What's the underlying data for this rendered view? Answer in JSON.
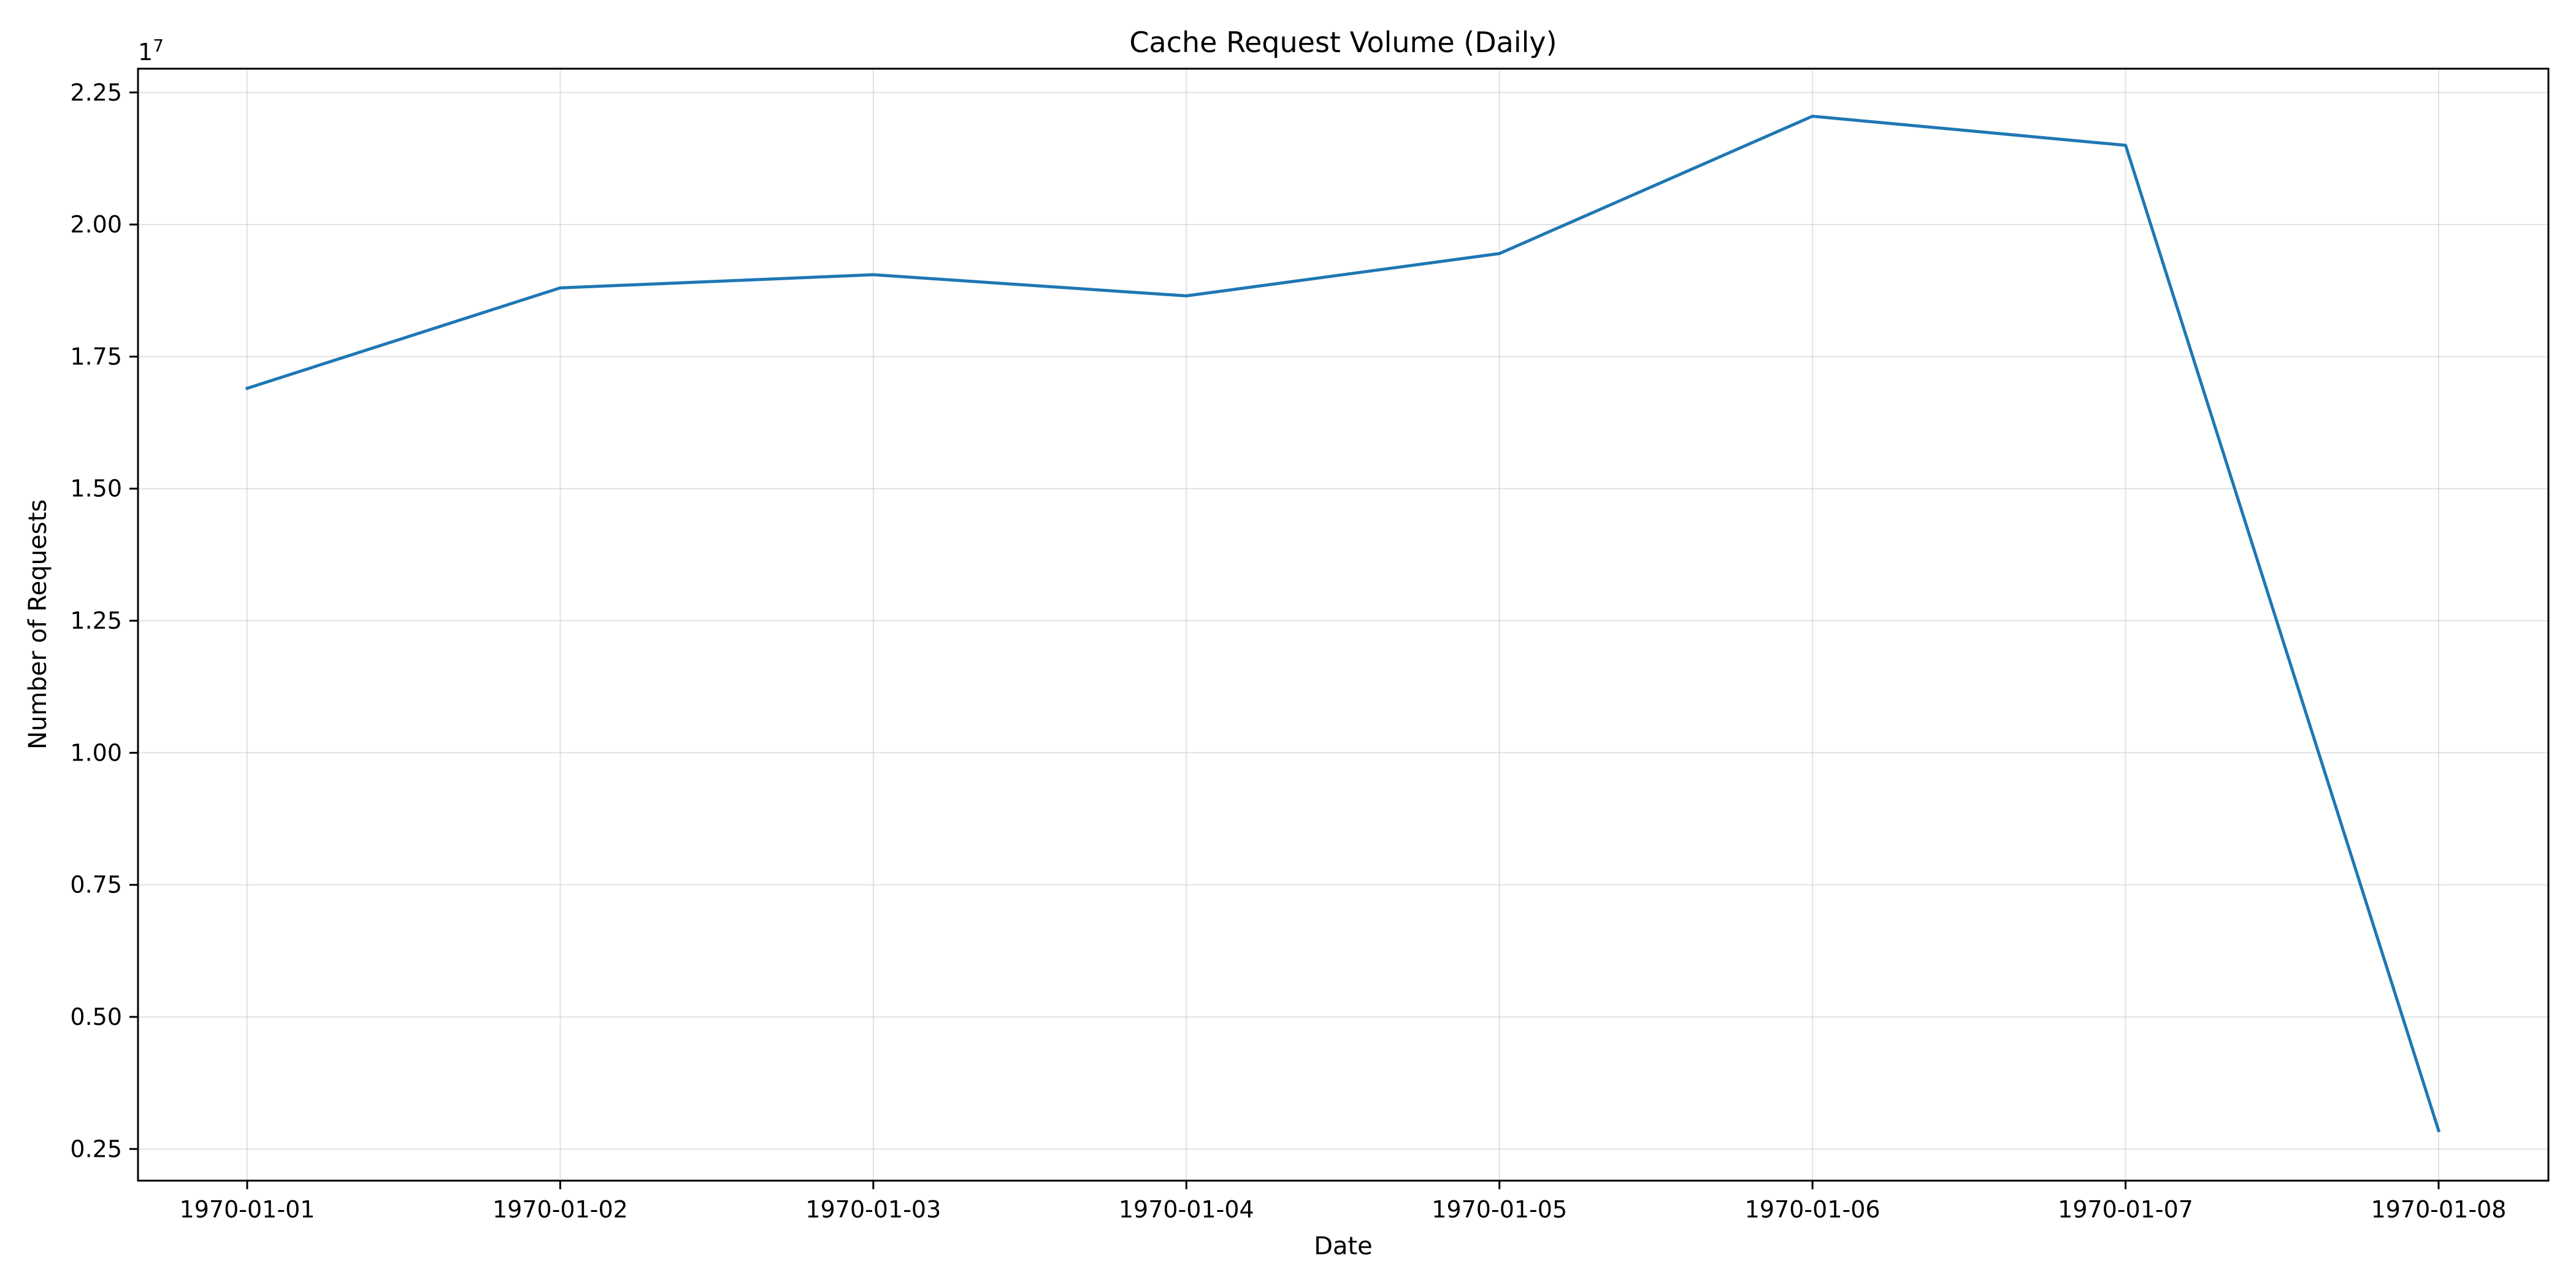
{
  "chart_data": {
    "type": "line",
    "title": "Cache Request Volume (Daily)",
    "xlabel": "Date",
    "ylabel": "Number of Requests",
    "y_offset_label": "1e7",
    "categories": [
      "1970-01-01",
      "1970-01-02",
      "1970-01-03",
      "1970-01-04",
      "1970-01-05",
      "1970-01-06",
      "1970-01-07",
      "1970-01-08"
    ],
    "series": [
      {
        "values": [
          16900000,
          18800000,
          19050000,
          18650000,
          19450000,
          22050000,
          21500000,
          2850000
        ],
        "color": "#1f77b4"
      }
    ],
    "ylim": [
      1900000,
      22950000
    ],
    "yticks": [
      2500000,
      5000000,
      7500000,
      10000000,
      12500000,
      15000000,
      17500000,
      20000000,
      22500000
    ],
    "ytick_labels": [
      "0.25",
      "0.50",
      "0.75",
      "1.00",
      "1.25",
      "1.50",
      "1.75",
      "2.00",
      "2.25"
    ],
    "grid": true,
    "legend": "none"
  }
}
